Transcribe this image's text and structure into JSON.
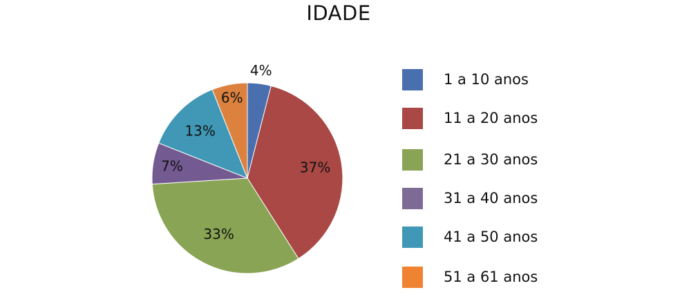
{
  "chart_data": {
    "type": "pie",
    "title": "IDADE",
    "categories": [
      "1 a 10 anos",
      "11 a 20 anos",
      "21 a 30 anos",
      "31 a 40 anos",
      "41 a 50 anos",
      "51 a 61 anos"
    ],
    "values": [
      4,
      37,
      33,
      7,
      13,
      6
    ],
    "value_labels": [
      "4%",
      "37%",
      "33%",
      "7%",
      "13%",
      "6%"
    ],
    "colors": [
      "#4A6FAE",
      "#A94844",
      "#89A454",
      "#735A91",
      "#4098B6",
      "#DC823E"
    ],
    "legend_colors": [
      "#4A6FAE",
      "#A94844",
      "#89A454",
      "#7E6B95",
      "#4098B6",
      "#F08332"
    ],
    "legend_position": "right",
    "start_angle": "top, clockwise"
  }
}
